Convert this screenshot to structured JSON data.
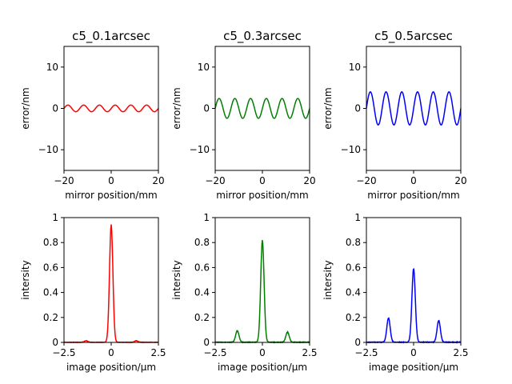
{
  "chart_data": [
    {
      "type": "line",
      "title": "c5_0.1arcsec",
      "xlabel": "mirror position/mm",
      "ylabel": "error/nm",
      "xlim": [
        -20,
        20
      ],
      "ylim": [
        -15,
        15
      ],
      "x_ticks": [
        -20,
        0,
        20
      ],
      "y_ticks": [
        -10,
        0,
        10
      ],
      "color": "#ff0000",
      "series": [
        {
          "kind": "sine",
          "amplitude": 0.8,
          "period": 6.6667,
          "x_range": [
            -20,
            20
          ]
        }
      ]
    },
    {
      "type": "line",
      "title": "c5_0.3arcsec",
      "xlabel": "mirror position/mm",
      "ylabel": "error/nm",
      "xlim": [
        -20,
        20
      ],
      "ylim": [
        -15,
        15
      ],
      "x_ticks": [
        -20,
        0,
        20
      ],
      "y_ticks": [
        -10,
        0,
        10
      ],
      "color": "#008000",
      "series": [
        {
          "kind": "sine",
          "amplitude": 2.4,
          "period": 6.6667,
          "x_range": [
            -20,
            20
          ]
        }
      ]
    },
    {
      "type": "line",
      "title": "c5_0.5arcsec",
      "xlabel": "mirror position/mm",
      "ylabel": "error/nm",
      "xlim": [
        -20,
        20
      ],
      "ylim": [
        -15,
        15
      ],
      "x_ticks": [
        -20,
        0,
        20
      ],
      "y_ticks": [
        -10,
        0,
        10
      ],
      "color": "#0000ff",
      "series": [
        {
          "kind": "sine",
          "amplitude": 4.0,
          "period": 6.6667,
          "x_range": [
            -20,
            20
          ]
        }
      ]
    },
    {
      "type": "line",
      "title": "",
      "xlabel": "image position/μm",
      "ylabel": "intersity",
      "xlim": [
        -2.5,
        2.5
      ],
      "ylim": [
        0.0,
        1.0
      ],
      "x_ticks": [
        -2.5,
        0.0,
        2.5
      ],
      "y_ticks": [
        0.0,
        0.2,
        0.4,
        0.6,
        0.8,
        1.0
      ],
      "color": "#ff0000",
      "series": [
        {
          "kind": "peaks",
          "x_range": [
            -2.5,
            2.5
          ],
          "width": 0.09,
          "noise": 0.012,
          "peaks": [
            {
              "x": 0.0,
              "height": 0.93
            },
            {
              "x": -1.33,
              "height": 0.012
            },
            {
              "x": 1.33,
              "height": 0.012
            }
          ]
        }
      ]
    },
    {
      "type": "line",
      "title": "",
      "xlabel": "image position/μm",
      "ylabel": "intersity",
      "xlim": [
        -2.5,
        2.5
      ],
      "ylim": [
        0.0,
        1.0
      ],
      "x_ticks": [
        -2.5,
        0.0,
        2.5
      ],
      "y_ticks": [
        0.0,
        0.2,
        0.4,
        0.6,
        0.8,
        1.0
      ],
      "color": "#008000",
      "series": [
        {
          "kind": "peaks",
          "x_range": [
            -2.5,
            2.5
          ],
          "width": 0.09,
          "noise": 0.018,
          "peaks": [
            {
              "x": 0.0,
              "height": 0.8
            },
            {
              "x": -1.33,
              "height": 0.09
            },
            {
              "x": 1.33,
              "height": 0.08
            }
          ]
        }
      ]
    },
    {
      "type": "line",
      "title": "",
      "xlabel": "image position/μm",
      "ylabel": "intersity",
      "xlim": [
        -2.5,
        2.5
      ],
      "ylim": [
        0.0,
        1.0
      ],
      "x_ticks": [
        -2.5,
        0.0,
        2.5
      ],
      "y_ticks": [
        0.0,
        0.2,
        0.4,
        0.6,
        0.8,
        1.0
      ],
      "color": "#0000ff",
      "series": [
        {
          "kind": "peaks",
          "x_range": [
            -2.5,
            2.5
          ],
          "width": 0.09,
          "noise": 0.02,
          "peaks": [
            {
              "x": 0.0,
              "height": 0.58
            },
            {
              "x": -1.33,
              "height": 0.19
            },
            {
              "x": 1.33,
              "height": 0.17
            }
          ]
        }
      ]
    }
  ]
}
